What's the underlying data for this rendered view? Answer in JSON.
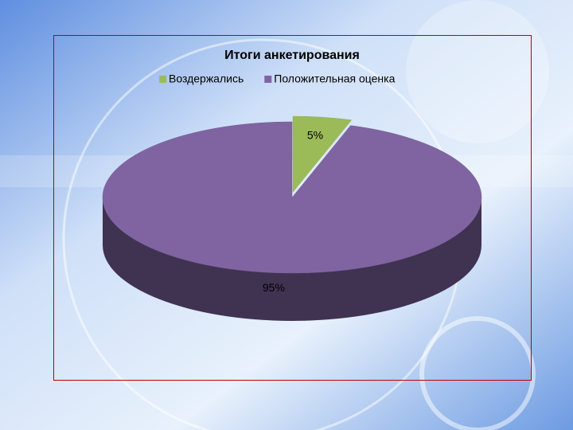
{
  "chart_data": {
    "type": "pie3d",
    "title": "Итоги анкетирования",
    "categories": [
      "Воздержались",
      "Положительная оценка"
    ],
    "values": [
      5,
      95
    ],
    "value_labels": [
      "5%",
      "95%"
    ],
    "colors": [
      "#9bbb59",
      "#8064a2"
    ],
    "legend": "top"
  }
}
